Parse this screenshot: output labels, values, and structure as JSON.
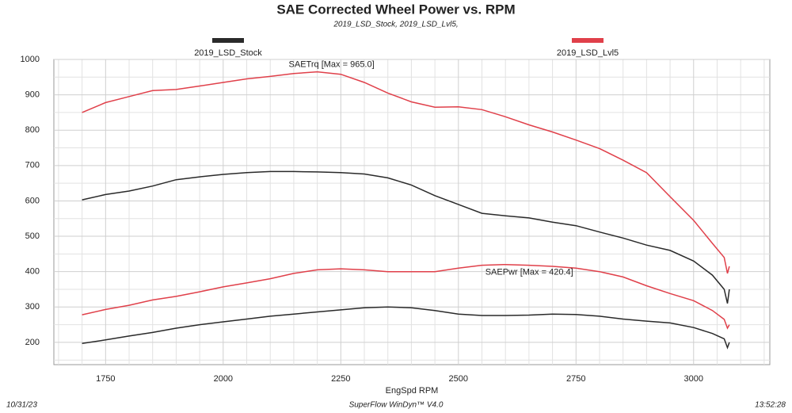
{
  "chart_data": {
    "type": "line",
    "title": "SAE Corrected Wheel Power vs. RPM",
    "subtitle": "2019_LSD_Stock, 2019_LSD_Lvl5,",
    "x_label": "EngSpd RPM",
    "footer_left": "10/31/23",
    "footer_center": "SuperFlow WinDyn™ V4.0",
    "footer_right": "13:52:28",
    "annotations": [
      "SAETrq [Max = 965.0]",
      "SAEPwr [Max = 420.4]"
    ],
    "xlim": [
      1640,
      3162
    ],
    "ylim": [
      137,
      1000
    ],
    "xticks": [
      1750,
      2000,
      2250,
      2500,
      2750,
      3000
    ],
    "yticks": [
      200,
      300,
      400,
      500,
      600,
      700,
      800,
      900,
      1000
    ],
    "x_minor_grid": [
      1650,
      1700,
      1800,
      1850,
      1900,
      1950,
      2050,
      2100,
      2150,
      2200,
      2300,
      2350,
      2400,
      2450,
      2550,
      2600,
      2650,
      2700,
      2800,
      2850,
      2900,
      2950,
      3050,
      3100,
      3150
    ],
    "y_minor_grid": [
      150,
      250,
      350,
      450,
      550,
      650,
      750,
      850,
      950
    ],
    "grid": true,
    "x": [
      1700,
      1750,
      1800,
      1850,
      1900,
      1950,
      2000,
      2050,
      2100,
      2150,
      2200,
      2250,
      2300,
      2350,
      2400,
      2450,
      2500,
      2550,
      2600,
      2650,
      2700,
      2750,
      2800,
      2850,
      2900,
      2950,
      3000,
      3040,
      3065,
      3072,
      3076
    ],
    "series": [
      {
        "name": "2019_LSD_Stock",
        "color": "#2a2a2a",
        "torque": [
          603,
          618,
          628,
          642,
          660,
          668,
          675,
          680,
          683,
          683,
          682,
          680,
          676,
          665,
          645,
          615,
          590,
          565,
          558,
          552,
          540,
          530,
          512,
          495,
          475,
          460,
          430,
          390,
          350,
          310,
          350
        ],
        "power": [
          197,
          207,
          218,
          228,
          240,
          250,
          258,
          266,
          274,
          280,
          286,
          292,
          298,
          300,
          298,
          290,
          280,
          276,
          276,
          277,
          280,
          279,
          274,
          266,
          260,
          255,
          242,
          225,
          210,
          185,
          200
        ]
      },
      {
        "name": "2019_LSD_Lvl5",
        "color": "#e0404a",
        "torque": [
          850,
          878,
          895,
          912,
          915,
          925,
          935,
          945,
          952,
          960,
          965,
          958,
          935,
          905,
          880,
          865,
          866,
          858,
          838,
          815,
          795,
          772,
          748,
          715,
          680,
          612,
          545,
          480,
          440,
          395,
          415
        ],
        "power": [
          278,
          293,
          305,
          320,
          330,
          343,
          357,
          368,
          380,
          395,
          405,
          408,
          405,
          400,
          400,
          400,
          410,
          418,
          420,
          418,
          415,
          410,
          400,
          385,
          360,
          338,
          318,
          290,
          265,
          240,
          250
        ]
      }
    ]
  }
}
